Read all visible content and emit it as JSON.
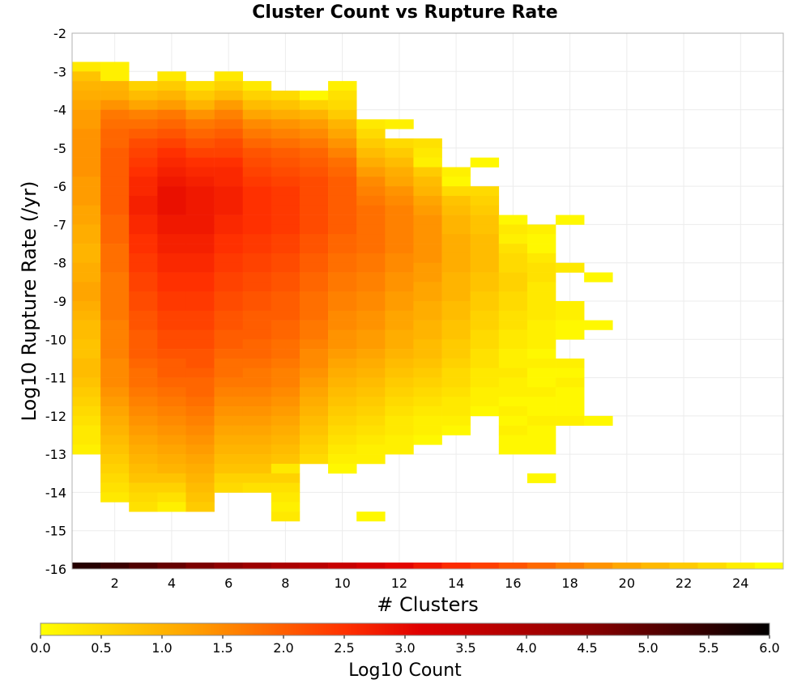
{
  "chart_data": {
    "type": "heatmap",
    "title": "Cluster Count vs Rupture Rate",
    "xlabel": "# Clusters",
    "ylabel": "Log10 Rupture Rate (/yr)",
    "xlim": [
      0.5,
      25.5
    ],
    "ylim": [
      -16,
      -2
    ],
    "x_ticks": [
      "2",
      "4",
      "6",
      "8",
      "10",
      "12",
      "14",
      "16",
      "18",
      "20",
      "22",
      "24"
    ],
    "y_ticks": [
      "-2",
      "-3",
      "-4",
      "-5",
      "-6",
      "-7",
      "-8",
      "-9",
      "-10",
      "-11",
      "-12",
      "-13",
      "-14",
      "-15",
      "-16"
    ],
    "grid": true,
    "colorbar": {
      "label": "Log10 Count",
      "range": [
        0.0,
        6.0
      ],
      "ticks": [
        "0.0",
        "0.5",
        "1.0",
        "1.5",
        "2.0",
        "2.5",
        "3.0",
        "3.5",
        "4.0",
        "4.5",
        "5.0",
        "5.5",
        "6.0"
      ],
      "colors": [
        "#ffff00",
        "#ffa500",
        "#ff3000",
        "#e00000",
        "#8b0000",
        "#000000"
      ]
    },
    "bin_height": 0.25,
    "columns": [
      {
        "x": 1,
        "y_top": -2.75,
        "values": [
          0.3,
          0.8,
          1.0,
          1.1,
          1.2,
          1.3,
          1.3,
          1.4,
          1.4,
          1.4,
          1.4,
          1.4,
          1.3,
          1.3,
          1.3,
          1.2,
          1.2,
          1.1,
          1.1,
          1.0,
          1.0,
          1.1,
          1.1,
          1.2,
          1.2,
          1.1,
          1.0,
          0.9,
          0.9,
          0.8,
          0.8,
          0.9,
          0.9,
          0.8,
          0.7,
          0.6,
          0.5,
          0.4,
          0.3,
          0.3,
          0.2
        ]
      },
      {
        "x": 2,
        "y_top": -2.75,
        "values": [
          0.2,
          0.2,
          1.0,
          1.1,
          1.4,
          1.7,
          1.8,
          1.9,
          1.9,
          2.0,
          2.0,
          2.0,
          2.0,
          2.0,
          2.0,
          2.0,
          1.9,
          1.9,
          1.9,
          1.8,
          1.8,
          1.8,
          1.7,
          1.7,
          1.7,
          1.7,
          1.7,
          1.6,
          1.6,
          1.6,
          1.6,
          1.5,
          1.5,
          1.5,
          1.4,
          1.3,
          1.2,
          1.1,
          1.0,
          0.9,
          0.8,
          0.7,
          0.6,
          0.5,
          0.4,
          0.3
        ]
      },
      {
        "x": 3,
        "y_top": -3.25,
        "values": [
          0.6,
          0.9,
          1.2,
          1.6,
          1.8,
          2.0,
          2.2,
          2.3,
          2.4,
          2.5,
          2.6,
          2.6,
          2.7,
          2.7,
          2.6,
          2.6,
          2.5,
          2.5,
          2.4,
          2.4,
          2.3,
          2.3,
          2.2,
          2.2,
          2.1,
          2.1,
          2.0,
          2.0,
          2.0,
          1.9,
          1.8,
          1.8,
          1.7,
          1.6,
          1.5,
          1.4,
          1.3,
          1.2,
          1.1,
          1.0,
          0.9,
          0.8,
          0.6,
          0.5,
          0.4
        ]
      },
      {
        "x": 4,
        "y_top": -3.0,
        "values": [
          0.3,
          0.7,
          1.0,
          1.3,
          1.7,
          1.9,
          2.1,
          2.3,
          2.5,
          2.6,
          2.7,
          2.8,
          2.9,
          2.9,
          2.9,
          2.8,
          2.8,
          2.7,
          2.7,
          2.6,
          2.6,
          2.5,
          2.5,
          2.4,
          2.4,
          2.3,
          2.3,
          2.2,
          2.2,
          2.1,
          2.0,
          2.0,
          1.9,
          1.8,
          1.7,
          1.6,
          1.5,
          1.4,
          1.3,
          1.2,
          1.1,
          1.0,
          0.8,
          0.6,
          0.4,
          0.2
        ]
      },
      {
        "x": 5,
        "y_top": -3.25,
        "values": [
          0.4,
          0.7,
          1.0,
          1.4,
          1.7,
          1.9,
          2.1,
          2.3,
          2.5,
          2.6,
          2.7,
          2.8,
          2.8,
          2.8,
          2.8,
          2.8,
          2.7,
          2.7,
          2.6,
          2.6,
          2.5,
          2.5,
          2.4,
          2.4,
          2.3,
          2.3,
          2.2,
          2.2,
          2.1,
          2.1,
          2.0,
          1.9,
          1.9,
          1.8,
          1.7,
          1.6,
          1.5,
          1.4,
          1.3,
          1.2,
          1.1,
          1.0,
          0.9,
          0.8,
          0.7
        ]
      },
      {
        "x": 6,
        "y_top": -3.0,
        "values": [
          0.3,
          0.6,
          0.9,
          1.3,
          1.6,
          1.8,
          2.0,
          2.2,
          2.3,
          2.5,
          2.6,
          2.6,
          2.7,
          2.7,
          2.7,
          2.6,
          2.6,
          2.5,
          2.5,
          2.4,
          2.4,
          2.3,
          2.3,
          2.2,
          2.2,
          2.1,
          2.1,
          2.0,
          2.0,
          1.9,
          1.8,
          1.8,
          1.7,
          1.6,
          1.5,
          1.4,
          1.3,
          1.2,
          1.1,
          1.0,
          0.9,
          0.8,
          0.6,
          0.5
        ]
      },
      {
        "x": 7,
        "y_top": -3.25,
        "values": [
          0.3,
          0.6,
          0.9,
          1.2,
          1.5,
          1.7,
          1.9,
          2.1,
          2.2,
          2.3,
          2.4,
          2.5,
          2.5,
          2.5,
          2.5,
          2.5,
          2.4,
          2.4,
          2.3,
          2.3,
          2.2,
          2.2,
          2.1,
          2.1,
          2.0,
          2.0,
          2.0,
          1.9,
          1.9,
          1.8,
          1.7,
          1.7,
          1.6,
          1.5,
          1.4,
          1.3,
          1.2,
          1.1,
          1.0,
          0.9,
          0.8,
          0.6,
          0.4
        ]
      },
      {
        "x": 8,
        "y_top": -3.5,
        "values": [
          0.5,
          0.8,
          1.1,
          1.4,
          1.6,
          1.8,
          2.0,
          2.1,
          2.2,
          2.3,
          2.4,
          2.4,
          2.4,
          2.4,
          2.4,
          2.3,
          2.3,
          2.2,
          2.2,
          2.1,
          2.1,
          2.0,
          2.0,
          2.0,
          1.9,
          1.9,
          1.8,
          1.8,
          1.7,
          1.6,
          1.6,
          1.5,
          1.4,
          1.3,
          1.2,
          1.1,
          1.0,
          0.9,
          0.8,
          0.3,
          0.6,
          0.4,
          0.3,
          0.2,
          0.3
        ]
      },
      {
        "x": 9,
        "y_top": -3.5,
        "values": [
          0.1,
          0.6,
          1.0,
          1.3,
          1.5,
          1.7,
          1.9,
          2.0,
          2.1,
          2.2,
          2.2,
          2.2,
          2.2,
          2.2,
          2.2,
          2.1,
          2.1,
          2.0,
          2.0,
          1.9,
          1.9,
          1.8,
          1.8,
          1.8,
          1.7,
          1.7,
          1.6,
          1.5,
          1.5,
          1.4,
          1.3,
          1.2,
          1.1,
          1.0,
          0.9,
          0.8,
          0.7,
          0.6,
          0.5
        ]
      },
      {
        "x": 10,
        "y_top": -3.25,
        "values": [
          0.2,
          0.4,
          0.5,
          0.7,
          1.0,
          1.2,
          1.4,
          1.6,
          1.8,
          1.9,
          2.0,
          2.0,
          2.0,
          2.0,
          2.0,
          2.0,
          1.9,
          1.9,
          1.8,
          1.8,
          1.7,
          1.7,
          1.6,
          1.6,
          1.5,
          1.5,
          1.4,
          1.4,
          1.3,
          1.2,
          1.1,
          1.0,
          0.9,
          0.8,
          0.7,
          0.6,
          0.5,
          0.4,
          0.3,
          0.2,
          0.1
        ]
      },
      {
        "x": 11,
        "y_top": -4.25,
        "values": [
          0.3,
          0.5,
          0.7,
          0.9,
          1.1,
          1.3,
          1.5,
          1.6,
          1.7,
          1.8,
          1.8,
          1.8,
          1.8,
          1.8,
          1.7,
          1.7,
          1.6,
          1.6,
          1.5,
          1.5,
          1.4,
          1.4,
          1.3,
          1.3,
          1.2,
          1.1,
          1.0,
          0.9,
          0.8,
          0.7,
          0.6,
          0.5,
          0.4,
          0.3,
          0.2,
          0.2,
          null,
          null,
          null,
          null,
          null,
          0.1
        ]
      },
      {
        "x": 12,
        "y_top": -4.25,
        "values": [
          0.2,
          null,
          0.5,
          0.7,
          0.9,
          1.1,
          1.2,
          1.4,
          1.5,
          1.6,
          1.6,
          1.6,
          1.6,
          1.6,
          1.5,
          1.5,
          1.4,
          1.4,
          1.3,
          1.3,
          1.2,
          1.2,
          1.1,
          1.1,
          1.0,
          0.9,
          0.8,
          0.7,
          0.6,
          0.5,
          0.4,
          0.3,
          0.3,
          0.2,
          0.2
        ]
      },
      {
        "x": 13,
        "y_top": -4.75,
        "values": [
          0.4,
          0.3,
          0.2,
          0.7,
          0.9,
          1.0,
          1.2,
          1.3,
          1.4,
          1.4,
          1.4,
          1.4,
          1.4,
          1.3,
          1.3,
          1.2,
          1.2,
          1.1,
          1.1,
          1.0,
          1.0,
          0.9,
          0.9,
          0.8,
          0.7,
          0.6,
          0.5,
          0.4,
          0.3,
          0.2,
          0.2,
          0.1
        ]
      },
      {
        "x": 14,
        "y_top": -5.5,
        "values": [
          0.2,
          0.1,
          0.5,
          0.8,
          0.9,
          1.0,
          1.0,
          1.1,
          1.1,
          1.1,
          1.1,
          1.0,
          1.0,
          1.0,
          0.9,
          0.9,
          0.8,
          0.8,
          0.7,
          0.7,
          0.6,
          0.5,
          0.5,
          0.4,
          0.3,
          0.3,
          0.2,
          0.1
        ]
      },
      {
        "x": 15,
        "y_top": -5.25,
        "values": [
          0.1,
          null,
          null,
          0.5,
          0.6,
          0.7,
          0.8,
          0.8,
          0.9,
          0.9,
          0.9,
          0.9,
          0.8,
          0.8,
          0.7,
          0.7,
          0.6,
          0.6,
          0.5,
          0.5,
          0.4,
          0.4,
          0.3,
          0.3,
          0.2,
          0.2,
          0.1
        ]
      },
      {
        "x": 16,
        "y_top": -6.75,
        "values": [
          0.1,
          0.3,
          0.2,
          0.4,
          0.5,
          0.5,
          0.6,
          0.6,
          0.5,
          0.5,
          0.4,
          0.4,
          0.3,
          0.3,
          0.2,
          0.2,
          0.3,
          0.2,
          0.2,
          0.1,
          0.2,
          0.1,
          0.2,
          0.1,
          0.1
        ]
      },
      {
        "x": 17,
        "y_top": -7.0,
        "values": [
          0.2,
          0.1,
          0.1,
          0.3,
          0.4,
          0.4,
          0.3,
          0.3,
          0.3,
          0.3,
          0.2,
          0.2,
          0.2,
          0.1,
          0.2,
          0.1,
          0.1,
          0.2,
          0.1,
          0.1,
          0.2,
          0.1,
          0.1,
          0.1,
          null,
          null,
          0.1
        ]
      },
      {
        "x": 18,
        "y_top": -6.75,
        "values": [
          0.1,
          null,
          null,
          null,
          null,
          0.3,
          null,
          null,
          null,
          0.2,
          0.2,
          0.1,
          0.1,
          null,
          null,
          0.2,
          0.1,
          0.2,
          0.1,
          0.1,
          0.1,
          0.2
        ]
      },
      {
        "x": 19,
        "y_top": -8.25,
        "values": [
          0.1,
          null,
          null,
          null,
          null,
          0.1,
          null,
          null,
          null,
          null,
          null,
          null,
          null,
          null,
          null,
          0.1
        ]
      }
    ]
  }
}
